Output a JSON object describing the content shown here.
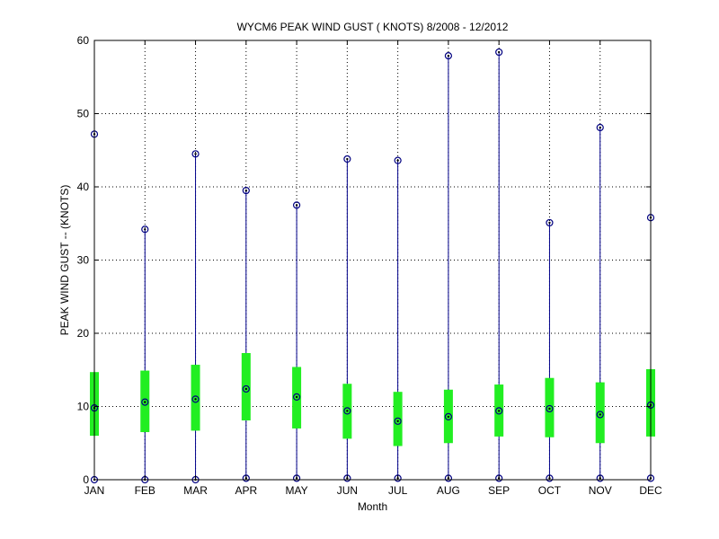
{
  "chart_data": {
    "type": "box",
    "title": "WYCM6  PEAK WIND GUST ( KNOTS) 8/2008 - 12/2012",
    "xlabel": "Month",
    "ylabel": "PEAK WIND GUST -- (KNOTS)",
    "ylim": [
      0,
      60
    ],
    "yticks": [
      "0",
      "10",
      "20",
      "30",
      "40",
      "50",
      "60"
    ],
    "grid": true,
    "categories": [
      "JAN",
      "FEB",
      "MAR",
      "APR",
      "MAY",
      "JUN",
      "JUL",
      "AUG",
      "SEP",
      "OCT",
      "NOV",
      "DEC"
    ],
    "series": [
      {
        "min": [
          0.0,
          0.0,
          0.0,
          0.2,
          0.2,
          0.2,
          0.2,
          0.2,
          0.2,
          0.2,
          0.2,
          0.2
        ],
        "q1": [
          6.0,
          6.5,
          6.7,
          8.1,
          7.0,
          5.6,
          4.6,
          5.0,
          5.9,
          5.8,
          5.0,
          5.9
        ],
        "median": [
          9.8,
          10.6,
          11.0,
          12.4,
          11.3,
          9.4,
          8.0,
          8.6,
          9.4,
          9.7,
          8.9,
          10.2
        ],
        "q3": [
          14.7,
          14.9,
          15.7,
          17.3,
          15.4,
          13.1,
          12.0,
          12.3,
          13.0,
          13.9,
          13.3,
          15.1
        ],
        "max": [
          47.2,
          34.2,
          44.5,
          39.5,
          37.5,
          43.8,
          43.6,
          57.9,
          58.4,
          35.1,
          48.1,
          35.8
        ]
      }
    ],
    "colors": {
      "whisker": "#00008b",
      "box": "#22ee22",
      "marker": "#000080",
      "grid": "#000000",
      "axis": "#000000"
    }
  }
}
